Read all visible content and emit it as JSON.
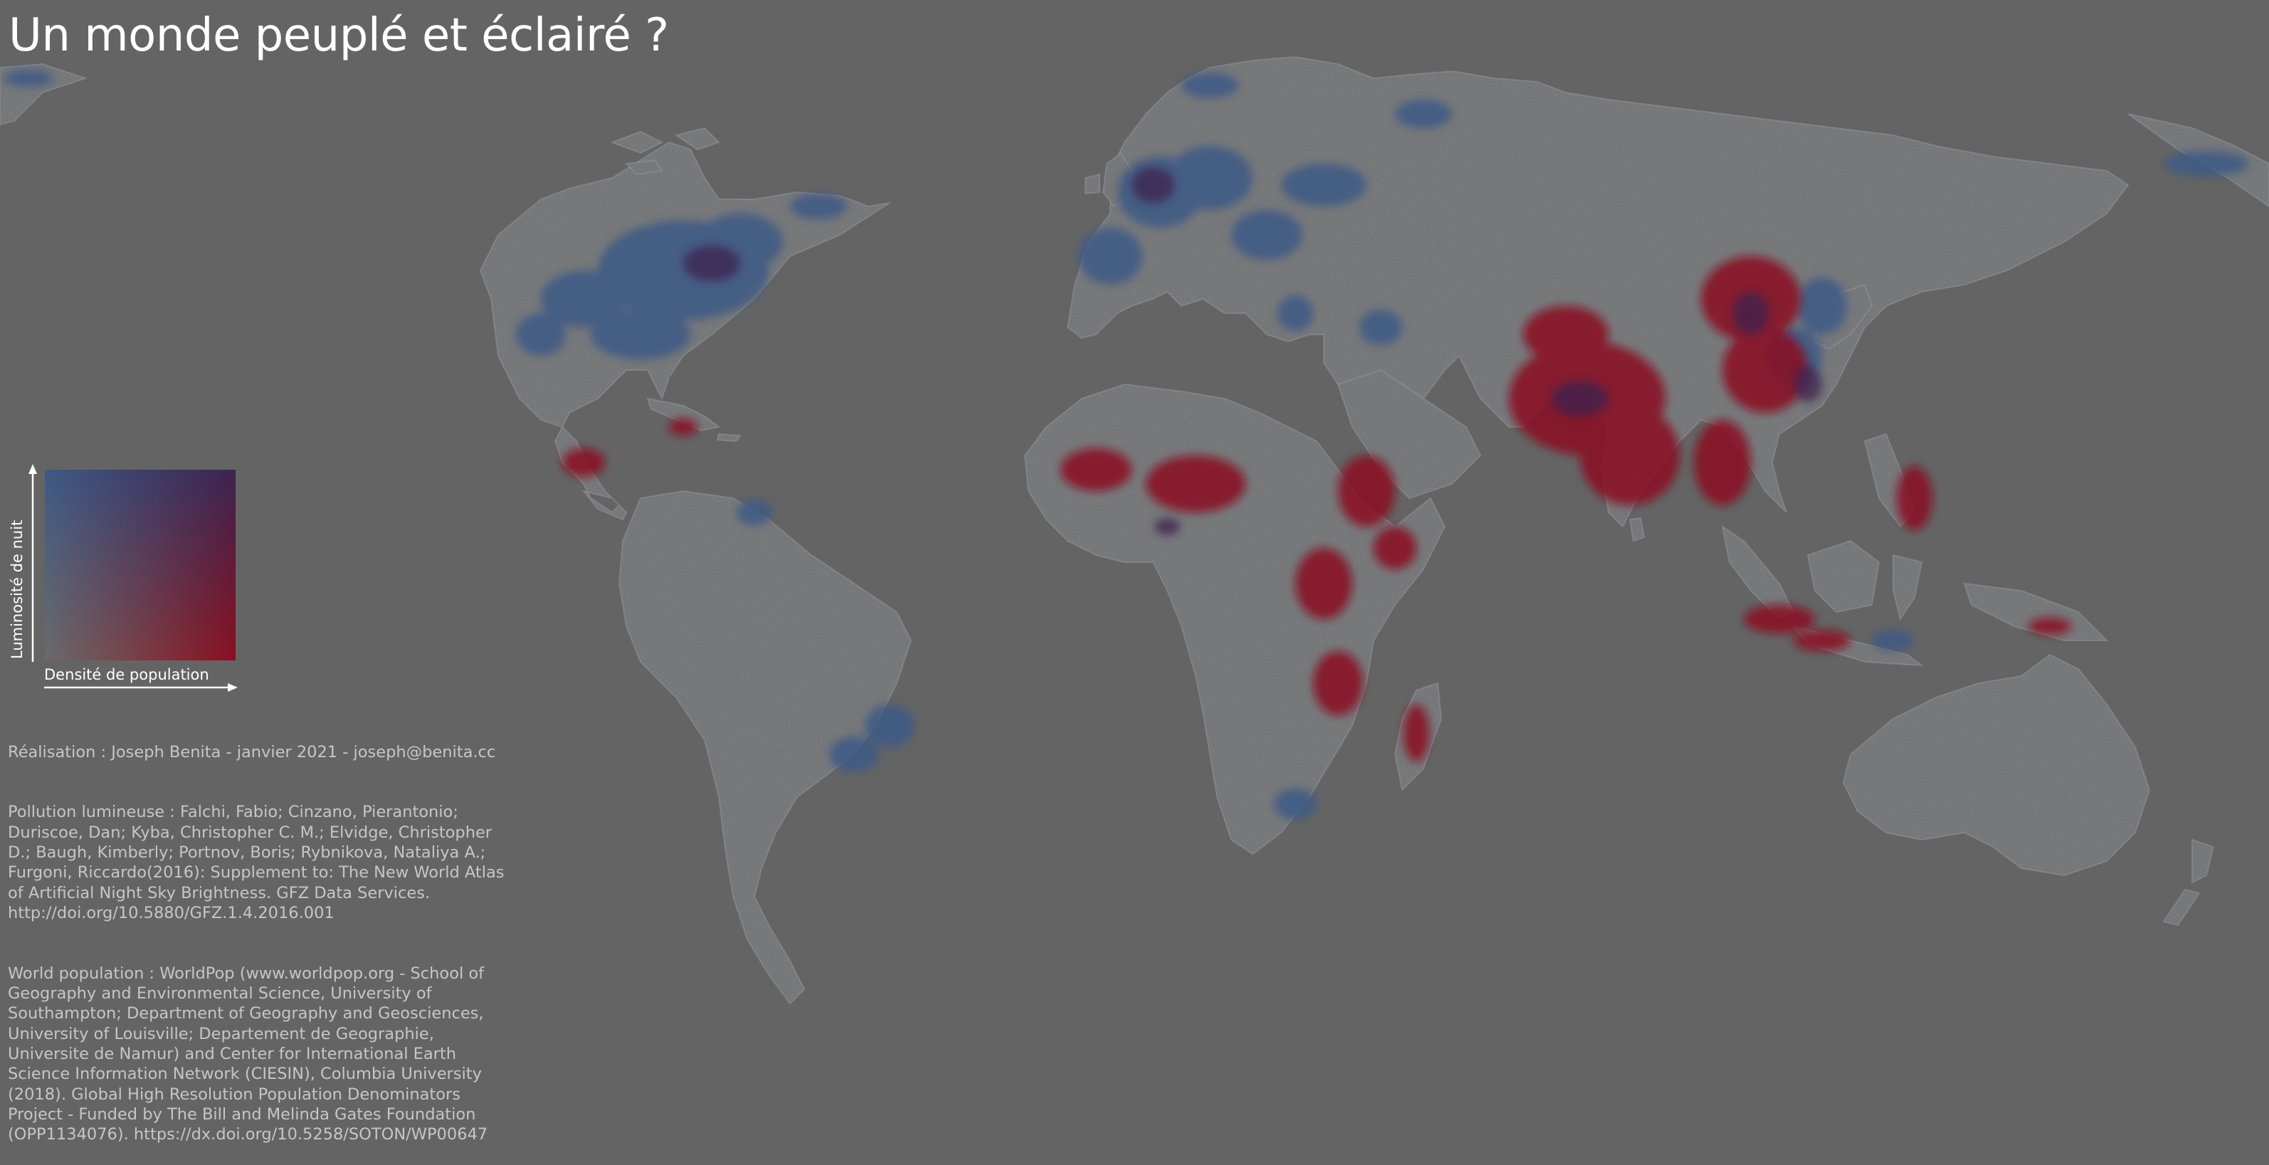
{
  "title": "Un monde peuplé et éclairé ?",
  "colors": {
    "background": "#646464",
    "land": "#6b6b6b",
    "bright_light": "#3e5a86",
    "dense_population": "#8a1020",
    "both": "#3c2450",
    "text": "#c6c6c6"
  },
  "legend": {
    "y_axis_label": "Luminosité de nuit",
    "x_axis_label": "Densité de population",
    "corner_colors": {
      "top_left": "#3e5a86",
      "top_right": "#3c2450",
      "bottom_left": "#6b6b6b",
      "bottom_right": "#8a1020"
    }
  },
  "credits": [
    "Réalisation : Joseph Benita - janvier 2021 - joseph@benita.cc",
    "Pollution lumineuse : Falchi, Fabio; Cinzano, Pierantonio; Duriscoe, Dan; Kyba, Christopher C. M.; Elvidge, Christopher D.; Baugh, Kimberly; Portnov, Boris; Rybnikova, Nataliya A.; Furgoni, Riccardo(2016): Supplement to: The New World Atlas of Artificial Night Sky Brightness. GFZ Data Services. http://doi.org/10.5880/GFZ.1.4.2016.001",
    "World population : WorldPop (www.worldpop.org - School of Geography and Environmental Science, University of Southampton; Department of Geography and Geosciences, University of Louisville; Departement de Geographie, Universite de Namur) and Center for International Earth Science Information Network (CIESIN), Columbia University (2018). Global High Resolution Population Denominators Project - Funded by The Bill and Melinda Gates Foundation (OPP1134076). https://dx.doi.org/10.5258/SOTON/WP00647"
  ]
}
